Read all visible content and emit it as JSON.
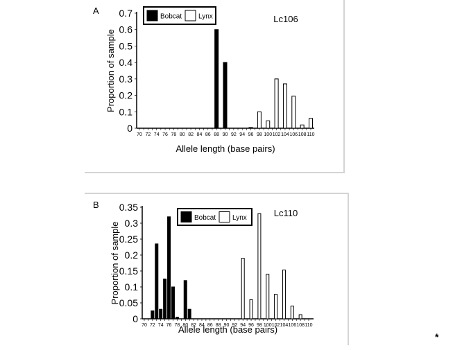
{
  "chart_data": [
    {
      "type": "bar",
      "panel_label": "A",
      "title": "Lc106",
      "xlabel": "Allele length (base pairs)",
      "ylabel": "Proportion of sample",
      "ylim": [
        0,
        0.7
      ],
      "yticks": [
        0,
        0.1,
        0.2,
        0.3,
        0.4,
        0.5,
        0.6,
        0.7
      ],
      "ytick_labels": [
        "0",
        "0.1",
        "0.2",
        "0.3",
        "0.4",
        "0.5",
        "0.6",
        "0.7"
      ],
      "xlim": [
        70,
        110
      ],
      "xticks": [
        70,
        72,
        74,
        76,
        78,
        80,
        82,
        84,
        86,
        88,
        90,
        92,
        94,
        96,
        98,
        100,
        102,
        104,
        106,
        108,
        110
      ],
      "legend": {
        "position": "top-left",
        "entries": [
          {
            "name": "Bobcat",
            "fill": "#000000"
          },
          {
            "name": "Lynx",
            "fill": "#ffffff"
          }
        ]
      },
      "series": [
        {
          "name": "Bobcat",
          "color": "#000000",
          "x": [
            88,
            90
          ],
          "values": [
            0.6,
            0.4
          ]
        },
        {
          "name": "Lynx",
          "color": "#ffffff",
          "x": [
            96,
            98,
            100,
            102,
            104,
            106,
            108,
            110
          ],
          "values": [
            0.005,
            0.1,
            0.045,
            0.3,
            0.27,
            0.195,
            0.02,
            0.06
          ]
        }
      ],
      "grid": false
    },
    {
      "type": "bar",
      "panel_label": "B",
      "title": "Lc110",
      "xlabel": "Allele length (base pairs)",
      "ylabel": "Proportion of sample",
      "ylim": [
        0,
        0.35
      ],
      "yticks": [
        0,
        0.05,
        0.1,
        0.15,
        0.2,
        0.25,
        0.3,
        0.35
      ],
      "ytick_labels": [
        "0",
        "0.05",
        "0.1",
        "0.15",
        "0.2",
        "0.25",
        "0.3",
        "0.35"
      ],
      "xlim": [
        70,
        110
      ],
      "xticks": [
        70,
        72,
        74,
        76,
        78,
        80,
        82,
        84,
        86,
        88,
        90,
        92,
        94,
        96,
        98,
        100,
        102,
        104,
        106,
        108,
        110
      ],
      "legend": {
        "position": "top-center",
        "entries": [
          {
            "name": "Bobcat",
            "fill": "#000000"
          },
          {
            "name": "Lynx",
            "fill": "#ffffff"
          }
        ]
      },
      "series": [
        {
          "name": "Bobcat",
          "color": "#000000",
          "x": [
            72,
            73,
            74,
            75,
            76,
            77,
            78,
            80,
            81
          ],
          "values": [
            0.025,
            0.235,
            0.03,
            0.125,
            0.32,
            0.1,
            0.005,
            0.12,
            0.03
          ]
        },
        {
          "name": "Lynx",
          "color": "#ffffff",
          "x": [
            94,
            96,
            98,
            100,
            102,
            104,
            106,
            108
          ],
          "values": [
            0.19,
            0.06,
            0.33,
            0.14,
            0.077,
            0.153,
            0.04,
            0.013
          ]
        }
      ],
      "grid": false
    }
  ],
  "footnote": "*"
}
